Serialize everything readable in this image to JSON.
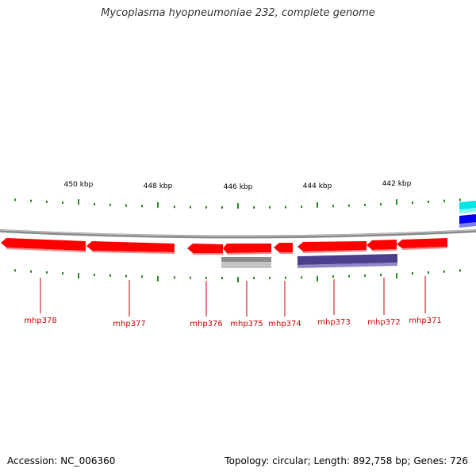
{
  "title": "Mycoplasma hyopneumoniae 232, complete genome",
  "footer": {
    "accession": "Accession: NC_006360",
    "summary": "Topology: circular; Length: 892,758 bp; Genes: 726"
  },
  "colors": {
    "backbone": "#888888",
    "gene_forward": "#ff0000",
    "tick": "#1f8a1f",
    "gene_label": "#cc0000",
    "gray_feature": "#a8a8a8",
    "purple_feature": "#4a3f8c",
    "cyan_feature": "#00e5e5",
    "blue_feature": "#0000ee"
  },
  "scale_labels": [
    "450 kbp",
    "448 kbp",
    "446 kbp",
    "444 kbp",
    "442 kbp"
  ],
  "genes": [
    {
      "label": "mhp378",
      "strand": "reverse"
    },
    {
      "label": "mhp377",
      "strand": "reverse"
    },
    {
      "label": "mhp376",
      "strand": "reverse"
    },
    {
      "label": "mhp375",
      "strand": "reverse"
    },
    {
      "label": "mhp374",
      "strand": "reverse"
    },
    {
      "label": "mhp373",
      "strand": "reverse"
    },
    {
      "label": "mhp372",
      "strand": "reverse"
    },
    {
      "label": "mhp371",
      "strand": "reverse"
    }
  ]
}
